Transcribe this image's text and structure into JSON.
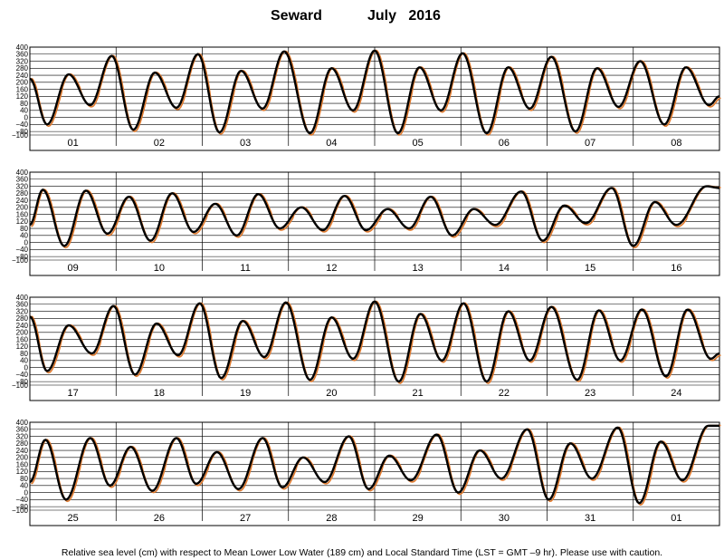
{
  "title": {
    "station": "Seward",
    "month_year": "July   2016"
  },
  "footnote": "Relative sea level (cm) with respect to Mean Lower Low Water (189 cm) and Local Standard Time (LST = GMT –9 hr). Please use with caution.",
  "series_colors": {
    "observed": "#000000",
    "predicted": "#e07a2e"
  },
  "chart_data": {
    "type": "line",
    "ylim": [
      -100,
      400
    ],
    "yticks": [
      400,
      360,
      320,
      280,
      240,
      200,
      160,
      120,
      80,
      40,
      0,
      -40,
      -80,
      -100
    ],
    "grid": true,
    "series": [
      {
        "key": "observed"
      },
      {
        "key": "predicted"
      }
    ],
    "panels": [
      {
        "days": [
          "01",
          "02",
          "03",
          "04",
          "05",
          "06",
          "07",
          "08"
        ],
        "start_level": 220,
        "extremes": [
          {
            "t": 0.2,
            "v": -40
          },
          {
            "t": 0.45,
            "v": 245
          },
          {
            "t": 0.7,
            "v": 70
          },
          {
            "t": 0.95,
            "v": 350
          },
          {
            "t": 1.2,
            "v": -70
          },
          {
            "t": 1.45,
            "v": 255
          },
          {
            "t": 1.7,
            "v": 55
          },
          {
            "t": 1.95,
            "v": 360
          },
          {
            "t": 2.2,
            "v": -85
          },
          {
            "t": 2.45,
            "v": 265
          },
          {
            "t": 2.7,
            "v": 50
          },
          {
            "t": 2.95,
            "v": 375
          },
          {
            "t": 3.25,
            "v": -90
          },
          {
            "t": 3.5,
            "v": 280
          },
          {
            "t": 3.75,
            "v": 40
          },
          {
            "t": 4.0,
            "v": 380
          },
          {
            "t": 4.27,
            "v": -90
          },
          {
            "t": 4.52,
            "v": 285
          },
          {
            "t": 4.77,
            "v": 40
          },
          {
            "t": 5.02,
            "v": 365
          },
          {
            "t": 5.3,
            "v": -90
          },
          {
            "t": 5.55,
            "v": 285
          },
          {
            "t": 5.8,
            "v": 50
          },
          {
            "t": 6.05,
            "v": 345
          },
          {
            "t": 6.33,
            "v": -80
          },
          {
            "t": 6.58,
            "v": 280
          },
          {
            "t": 6.83,
            "v": 60
          },
          {
            "t": 7.08,
            "v": 320
          },
          {
            "t": 7.36,
            "v": -40
          },
          {
            "t": 7.61,
            "v": 285
          },
          {
            "t": 7.88,
            "v": 70
          },
          {
            "t": 8.0,
            "v": 120
          }
        ]
      },
      {
        "days": [
          "09",
          "10",
          "11",
          "12",
          "13",
          "14",
          "15",
          "16"
        ],
        "start_level": 100,
        "extremes": [
          {
            "t": 0.15,
            "v": 300
          },
          {
            "t": 0.4,
            "v": -20
          },
          {
            "t": 0.65,
            "v": 295
          },
          {
            "t": 0.9,
            "v": 50
          },
          {
            "t": 1.15,
            "v": 260
          },
          {
            "t": 1.4,
            "v": 10
          },
          {
            "t": 1.65,
            "v": 280
          },
          {
            "t": 1.9,
            "v": 60
          },
          {
            "t": 2.15,
            "v": 220
          },
          {
            "t": 2.4,
            "v": 40
          },
          {
            "t": 2.65,
            "v": 275
          },
          {
            "t": 2.9,
            "v": 80
          },
          {
            "t": 3.15,
            "v": 200
          },
          {
            "t": 3.4,
            "v": 70
          },
          {
            "t": 3.65,
            "v": 265
          },
          {
            "t": 3.9,
            "v": 70
          },
          {
            "t": 4.15,
            "v": 190
          },
          {
            "t": 4.4,
            "v": 80
          },
          {
            "t": 4.65,
            "v": 260
          },
          {
            "t": 4.9,
            "v": 40
          },
          {
            "t": 5.15,
            "v": 190
          },
          {
            "t": 5.4,
            "v": 100
          },
          {
            "t": 5.7,
            "v": 290
          },
          {
            "t": 5.95,
            "v": 10
          },
          {
            "t": 6.2,
            "v": 210
          },
          {
            "t": 6.45,
            "v": 110
          },
          {
            "t": 6.75,
            "v": 310
          },
          {
            "t": 7.0,
            "v": -20
          },
          {
            "t": 7.25,
            "v": 230
          },
          {
            "t": 7.5,
            "v": 100
          },
          {
            "t": 7.85,
            "v": 320
          },
          {
            "t": 8.0,
            "v": 310
          }
        ]
      },
      {
        "days": [
          "17",
          "18",
          "19",
          "20",
          "21",
          "22",
          "23",
          "24"
        ],
        "start_level": 290,
        "extremes": [
          {
            "t": 0.2,
            "v": -20
          },
          {
            "t": 0.45,
            "v": 240
          },
          {
            "t": 0.72,
            "v": 80
          },
          {
            "t": 0.97,
            "v": 350
          },
          {
            "t": 1.22,
            "v": -40
          },
          {
            "t": 1.47,
            "v": 250
          },
          {
            "t": 1.72,
            "v": 70
          },
          {
            "t": 1.97,
            "v": 365
          },
          {
            "t": 2.22,
            "v": -60
          },
          {
            "t": 2.47,
            "v": 265
          },
          {
            "t": 2.72,
            "v": 60
          },
          {
            "t": 2.97,
            "v": 370
          },
          {
            "t": 3.25,
            "v": -70
          },
          {
            "t": 3.5,
            "v": 285
          },
          {
            "t": 3.75,
            "v": 50
          },
          {
            "t": 4.0,
            "v": 375
          },
          {
            "t": 4.28,
            "v": -80
          },
          {
            "t": 4.53,
            "v": 305
          },
          {
            "t": 4.78,
            "v": 40
          },
          {
            "t": 5.03,
            "v": 365
          },
          {
            "t": 5.3,
            "v": -80
          },
          {
            "t": 5.55,
            "v": 320
          },
          {
            "t": 5.8,
            "v": 40
          },
          {
            "t": 6.05,
            "v": 345
          },
          {
            "t": 6.35,
            "v": -70
          },
          {
            "t": 6.6,
            "v": 325
          },
          {
            "t": 6.85,
            "v": 40
          },
          {
            "t": 7.1,
            "v": 330
          },
          {
            "t": 7.38,
            "v": -50
          },
          {
            "t": 7.63,
            "v": 330
          },
          {
            "t": 7.9,
            "v": 50
          },
          {
            "t": 8.0,
            "v": 80
          }
        ]
      },
      {
        "days": [
          "25",
          "26",
          "27",
          "28",
          "29",
          "30",
          "31",
          "01"
        ],
        "start_level": 60,
        "extremes": [
          {
            "t": 0.18,
            "v": 300
          },
          {
            "t": 0.42,
            "v": -40
          },
          {
            "t": 0.7,
            "v": 310
          },
          {
            "t": 0.93,
            "v": 40
          },
          {
            "t": 1.17,
            "v": 260
          },
          {
            "t": 1.42,
            "v": 10
          },
          {
            "t": 1.7,
            "v": 310
          },
          {
            "t": 1.93,
            "v": 50
          },
          {
            "t": 2.17,
            "v": 230
          },
          {
            "t": 2.42,
            "v": 20
          },
          {
            "t": 2.7,
            "v": 310
          },
          {
            "t": 2.93,
            "v": 30
          },
          {
            "t": 3.17,
            "v": 200
          },
          {
            "t": 3.42,
            "v": 60
          },
          {
            "t": 3.7,
            "v": 320
          },
          {
            "t": 3.93,
            "v": 20
          },
          {
            "t": 4.17,
            "v": 210
          },
          {
            "t": 4.42,
            "v": 70
          },
          {
            "t": 4.72,
            "v": 330
          },
          {
            "t": 4.97,
            "v": 0
          },
          {
            "t": 5.22,
            "v": 240
          },
          {
            "t": 5.47,
            "v": 80
          },
          {
            "t": 5.77,
            "v": 360
          },
          {
            "t": 6.02,
            "v": -40
          },
          {
            "t": 6.27,
            "v": 280
          },
          {
            "t": 6.52,
            "v": 80
          },
          {
            "t": 6.82,
            "v": 370
          },
          {
            "t": 7.07,
            "v": -60
          },
          {
            "t": 7.32,
            "v": 290
          },
          {
            "t": 7.57,
            "v": 70
          },
          {
            "t": 7.87,
            "v": 380
          },
          {
            "t": 8.0,
            "v": 380
          }
        ]
      }
    ]
  }
}
